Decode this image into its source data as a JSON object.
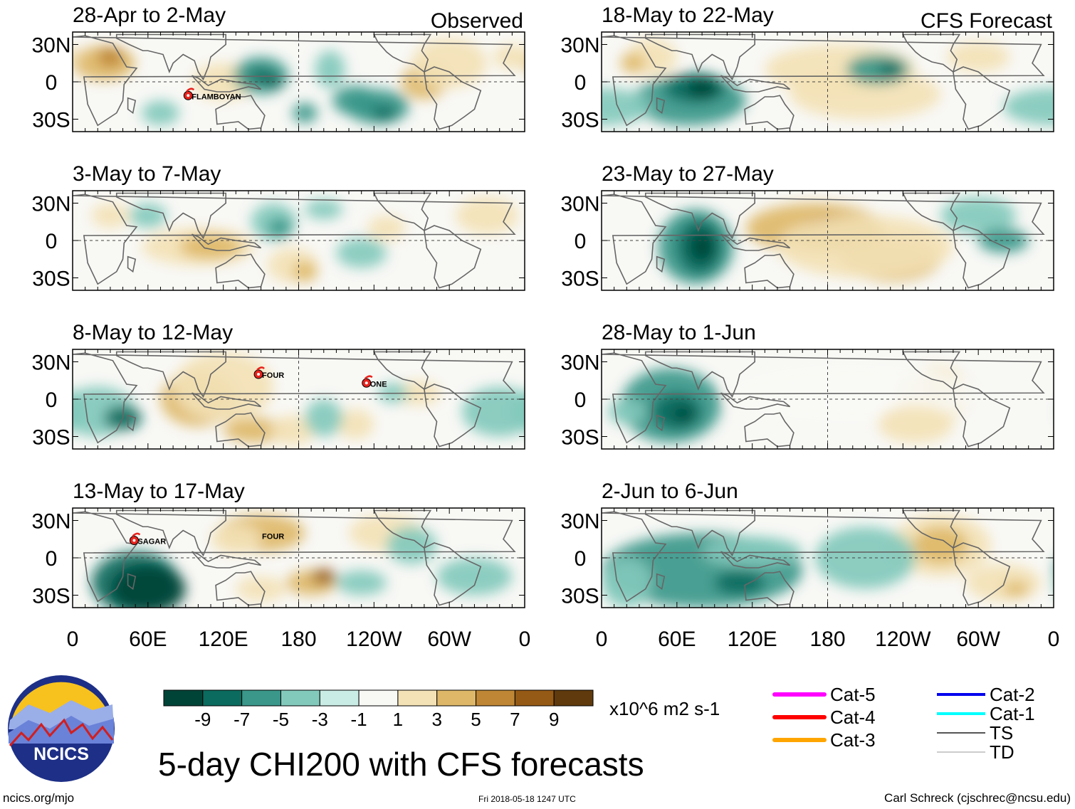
{
  "chart_data": {
    "type": "heatmap",
    "title": "5-day CHI200 with CFS forecasts",
    "colorbar": {
      "ticks": [
        "-9",
        "-7",
        "-5",
        "-3",
        "-1",
        "1",
        "3",
        "5",
        "7",
        "9"
      ],
      "units": "x10^6 m2 s-1",
      "colors": [
        "#004437",
        "#0b6b5e",
        "#3a978a",
        "#82c9bc",
        "#c9ece4",
        "#f8f8f5",
        "#f3e2b6",
        "#deb868",
        "#be8635",
        "#955a16",
        "#603a0d"
      ]
    },
    "x_ticks": [
      "0",
      "60E",
      "120E",
      "180",
      "120W",
      "60W",
      "0"
    ],
    "y_ticks": [
      "30N",
      "0",
      "30S"
    ],
    "columns": {
      "left": "Observed",
      "right": "CFS Forecast"
    },
    "panels": [
      {
        "title": "28-Apr to 2-May",
        "column": "Observed",
        "storms": [
          {
            "name": "FLAMBOYAN",
            "lon": 92,
            "lat": -11
          }
        ]
      },
      {
        "title": "3-May to 7-May",
        "column": "Observed",
        "storms": []
      },
      {
        "title": "8-May to 12-May",
        "column": "Observed",
        "storms": [
          {
            "name": "FOUR",
            "lon": 148,
            "lat": 20
          },
          {
            "name": "ONE",
            "lon": 234,
            "lat": 13
          }
        ]
      },
      {
        "title": "13-May to 17-May",
        "column": "Observed",
        "storms": [
          {
            "name": "SAGAR",
            "lon": 49,
            "lat": 14
          },
          {
            "name": "FOUR",
            "lon": 148,
            "lat": 18
          }
        ]
      },
      {
        "title": "18-May to 22-May",
        "column": "CFS Forecast",
        "storms": []
      },
      {
        "title": "23-May to 27-May",
        "column": "CFS Forecast",
        "storms": []
      },
      {
        "title": "28-May to 1-Jun",
        "column": "CFS Forecast",
        "storms": []
      },
      {
        "title": "2-Jun to 6-Jun",
        "column": "CFS Forecast",
        "storms": []
      }
    ]
  },
  "legend": {
    "items_left": [
      {
        "label": "Cat-5",
        "color": "#ff00ff"
      },
      {
        "label": "Cat-4",
        "color": "#ff0000"
      },
      {
        "label": "Cat-3",
        "color": "#ffa500"
      }
    ],
    "items_right": [
      {
        "label": "Cat-2",
        "color": "#0000ee"
      },
      {
        "label": "Cat-1",
        "color": "#00ffff"
      },
      {
        "label": "TS",
        "color": "#555555"
      },
      {
        "label": "TD",
        "color": "#999999"
      }
    ]
  },
  "logo": {
    "text": "NCICS"
  },
  "footer": {
    "site": "ncics.org/mjo",
    "timestamp": "Fri 2018-05-18 1247 UTC",
    "credit": "Carl Schreck (cjschrec@ncsu.edu)"
  }
}
